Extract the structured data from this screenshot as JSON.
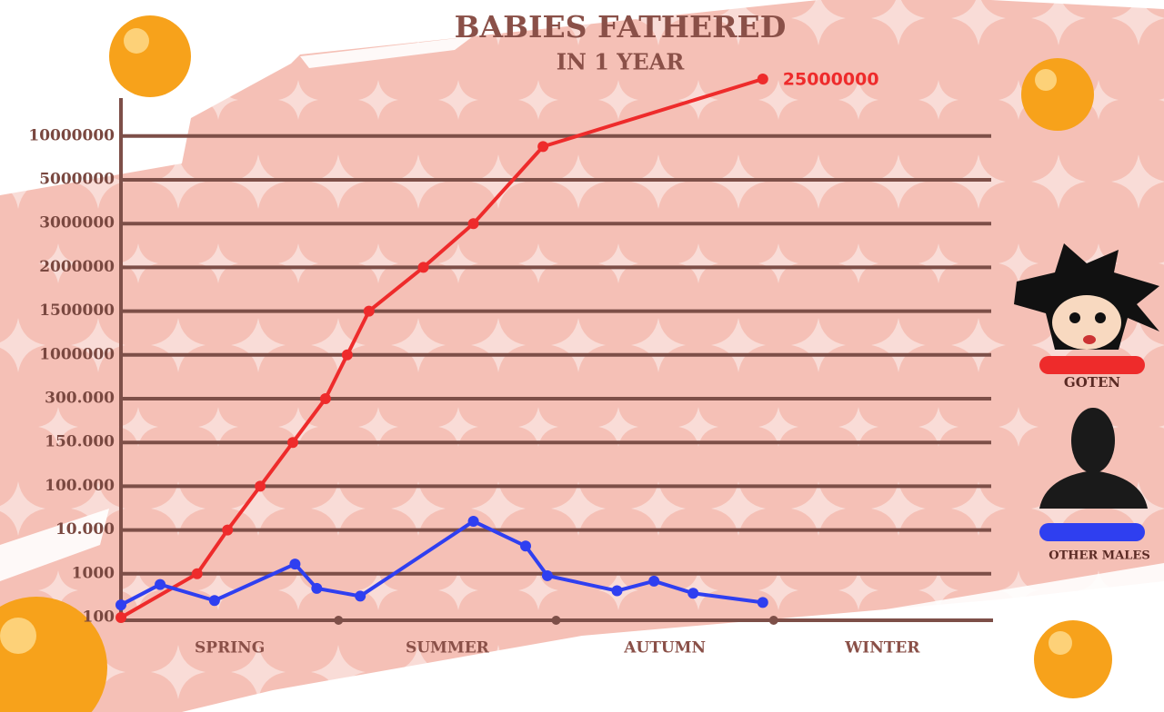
{
  "chart_data": {
    "type": "line",
    "title": "BABIES FATHERED",
    "subtitle": "IN 1 YEAR",
    "categories": [
      "SPRING",
      "SUMMER",
      "AUTUMN",
      "WINTER"
    ],
    "xlim": [
      0,
      4
    ],
    "ylim": [
      100,
      25000000
    ],
    "yticks": [
      100,
      1000,
      {
        "value": 10000,
        "label": "10.000"
      },
      {
        "value": 100000,
        "label": "100.000"
      },
      {
        "value": 150000,
        "label": "150.000"
      },
      {
        "value": 300000,
        "label": "300.000"
      },
      1000000,
      1500000,
      2000000,
      3000000,
      5000000,
      10000000
    ],
    "grid": true,
    "legend": "right",
    "series": [
      {
        "name": "GOTEN",
        "color": "#ee2b2b",
        "x": [
          0,
          0.35,
          0.49,
          0.64,
          0.79,
          0.94,
          1.04,
          1.14,
          1.39,
          1.62,
          1.94,
          2.95
        ],
        "values": [
          100,
          1000,
          10000,
          100000,
          150000,
          300000,
          1000000,
          1500000,
          2000000,
          3000000,
          8800000,
          25000000
        ]
      },
      {
        "name": "OTHER MALES",
        "color": "#2f3ff0",
        "x": [
          0,
          0.18,
          0.43,
          0.8,
          0.9,
          1.1,
          1.62,
          1.86,
          1.96,
          2.28,
          2.45,
          2.63,
          2.95
        ],
        "values": [
          360,
          780,
          450,
          3000,
          700,
          540,
          28000,
          6700,
          960,
          650,
          850,
          600,
          410
        ]
      }
    ]
  }
}
